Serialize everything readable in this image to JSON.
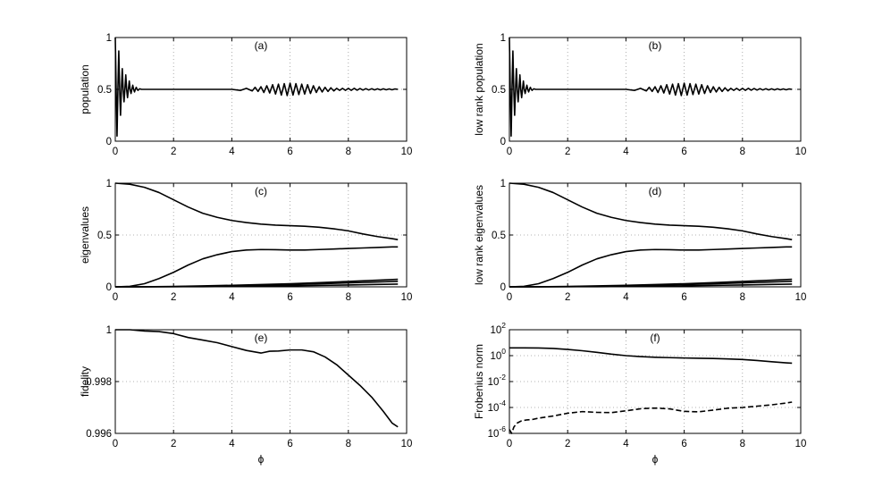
{
  "chart_data": [
    {
      "id": "a",
      "type": "line",
      "panel_label": "(a)",
      "xlabel": "",
      "ylabel": "population",
      "xlim": [
        0,
        10
      ],
      "ylim": [
        0,
        1
      ],
      "xticks": [
        "0",
        "2",
        "4",
        "6",
        "8",
        "10"
      ],
      "yticks": [
        {
          "v": 0,
          "t": "0"
        },
        {
          "v": 0.5,
          "t": "0.5"
        },
        {
          "v": 1,
          "t": "1"
        }
      ],
      "log_y": false,
      "grid": true,
      "series": [
        {
          "style": "solid",
          "x": [
            0,
            0.03,
            0.06,
            0.09,
            0.12,
            0.15,
            0.18,
            0.21,
            0.24,
            0.27,
            0.3,
            0.33,
            0.36,
            0.39,
            0.42,
            0.45,
            0.48,
            0.51,
            0.54,
            0.57,
            0.6,
            0.63,
            0.66,
            0.69,
            0.72,
            0.75,
            0.78,
            0.81,
            0.84,
            0.9,
            1.0,
            1.5,
            2,
            2.5,
            3,
            3.5,
            4,
            4.3,
            4.5,
            4.7,
            4.8,
            4.9,
            5.0,
            5.1,
            5.2,
            5.3,
            5.4,
            5.5,
            5.6,
            5.7,
            5.8,
            5.9,
            6.0,
            6.1,
            6.2,
            6.3,
            6.4,
            6.5,
            6.6,
            6.7,
            6.8,
            6.9,
            7.0,
            7.1,
            7.2,
            7.3,
            7.4,
            7.5,
            7.6,
            7.7,
            7.8,
            7.9,
            8.0,
            8.1,
            8.2,
            8.3,
            8.4,
            8.5,
            8.6,
            8.7,
            8.8,
            8.9,
            9.0,
            9.1,
            9.2,
            9.3,
            9.4,
            9.5,
            9.6,
            9.7
          ],
          "y": [
            1.0,
            0.5,
            0.05,
            0.5,
            0.87,
            0.5,
            0.25,
            0.5,
            0.7,
            0.5,
            0.38,
            0.5,
            0.64,
            0.5,
            0.42,
            0.5,
            0.58,
            0.5,
            0.46,
            0.5,
            0.54,
            0.5,
            0.475,
            0.5,
            0.52,
            0.5,
            0.49,
            0.5,
            0.505,
            0.5,
            0.5,
            0.5,
            0.5,
            0.5,
            0.5,
            0.5,
            0.5,
            0.49,
            0.51,
            0.485,
            0.52,
            0.48,
            0.525,
            0.47,
            0.535,
            0.465,
            0.545,
            0.455,
            0.55,
            0.445,
            0.555,
            0.44,
            0.56,
            0.445,
            0.555,
            0.45,
            0.55,
            0.455,
            0.545,
            0.46,
            0.535,
            0.47,
            0.525,
            0.475,
            0.52,
            0.48,
            0.515,
            0.485,
            0.51,
            0.49,
            0.51,
            0.49,
            0.51,
            0.49,
            0.51,
            0.492,
            0.508,
            0.493,
            0.507,
            0.494,
            0.506,
            0.495,
            0.505,
            0.495,
            0.505,
            0.496,
            0.504,
            0.496,
            0.504,
            0.5
          ]
        }
      ]
    },
    {
      "id": "b",
      "type": "line",
      "panel_label": "(b)",
      "xlabel": "",
      "ylabel": "low rank population",
      "xlim": [
        0,
        10
      ],
      "ylim": [
        0,
        1
      ],
      "xticks": [
        "0",
        "2",
        "4",
        "6",
        "8",
        "10"
      ],
      "yticks": [
        {
          "v": 0,
          "t": "0"
        },
        {
          "v": 0.5,
          "t": "0.5"
        },
        {
          "v": 1,
          "t": "1"
        }
      ],
      "log_y": false,
      "grid": true,
      "series": [
        {
          "style": "solid",
          "x": [
            0,
            0.03,
            0.06,
            0.09,
            0.12,
            0.15,
            0.18,
            0.21,
            0.24,
            0.27,
            0.3,
            0.33,
            0.36,
            0.39,
            0.42,
            0.45,
            0.48,
            0.51,
            0.54,
            0.57,
            0.6,
            0.63,
            0.66,
            0.69,
            0.72,
            0.75,
            0.78,
            0.81,
            0.84,
            0.9,
            1.0,
            1.5,
            2,
            2.5,
            3,
            3.5,
            4,
            4.3,
            4.5,
            4.7,
            4.8,
            4.9,
            5.0,
            5.1,
            5.2,
            5.3,
            5.4,
            5.5,
            5.6,
            5.7,
            5.8,
            5.9,
            6.0,
            6.1,
            6.2,
            6.3,
            6.4,
            6.5,
            6.6,
            6.7,
            6.8,
            6.9,
            7.0,
            7.1,
            7.2,
            7.3,
            7.4,
            7.5,
            7.6,
            7.7,
            7.8,
            7.9,
            8.0,
            8.1,
            8.2,
            8.3,
            8.4,
            8.5,
            8.6,
            8.7,
            8.8,
            8.9,
            9.0,
            9.1,
            9.2,
            9.3,
            9.4,
            9.5,
            9.6,
            9.7
          ],
          "y": [
            1.0,
            0.5,
            0.05,
            0.5,
            0.87,
            0.5,
            0.25,
            0.5,
            0.7,
            0.5,
            0.38,
            0.5,
            0.64,
            0.5,
            0.42,
            0.5,
            0.58,
            0.5,
            0.46,
            0.5,
            0.54,
            0.5,
            0.475,
            0.5,
            0.52,
            0.5,
            0.49,
            0.5,
            0.505,
            0.5,
            0.5,
            0.5,
            0.5,
            0.5,
            0.5,
            0.5,
            0.5,
            0.49,
            0.51,
            0.485,
            0.52,
            0.48,
            0.525,
            0.47,
            0.535,
            0.465,
            0.545,
            0.455,
            0.55,
            0.445,
            0.555,
            0.44,
            0.56,
            0.445,
            0.555,
            0.45,
            0.55,
            0.455,
            0.545,
            0.46,
            0.535,
            0.47,
            0.525,
            0.475,
            0.52,
            0.48,
            0.515,
            0.485,
            0.51,
            0.49,
            0.51,
            0.49,
            0.51,
            0.49,
            0.51,
            0.492,
            0.508,
            0.493,
            0.507,
            0.494,
            0.506,
            0.495,
            0.505,
            0.495,
            0.505,
            0.496,
            0.504,
            0.496,
            0.504,
            0.5
          ]
        }
      ]
    },
    {
      "id": "c",
      "type": "line",
      "panel_label": "(c)",
      "xlabel": "",
      "ylabel": "eigenvalues",
      "xlim": [
        0,
        10
      ],
      "ylim": [
        0,
        1
      ],
      "xticks": [
        "0",
        "2",
        "4",
        "6",
        "8",
        "10"
      ],
      "yticks": [
        {
          "v": 0,
          "t": "0"
        },
        {
          "v": 0.5,
          "t": "0.5"
        },
        {
          "v": 1,
          "t": "1"
        }
      ],
      "log_y": false,
      "grid": true,
      "series": [
        {
          "style": "solid",
          "x": [
            0,
            0.5,
            1,
            1.5,
            2,
            2.5,
            3,
            3.5,
            4,
            4.5,
            5,
            5.5,
            6,
            6.5,
            7,
            7.5,
            8,
            8.5,
            9,
            9.5,
            9.7
          ],
          "y": [
            1.0,
            0.99,
            0.96,
            0.91,
            0.84,
            0.77,
            0.71,
            0.67,
            0.64,
            0.62,
            0.605,
            0.595,
            0.59,
            0.585,
            0.575,
            0.56,
            0.54,
            0.51,
            0.485,
            0.465,
            0.455
          ]
        },
        {
          "style": "solid",
          "x": [
            0,
            0.5,
            1,
            1.5,
            2,
            2.5,
            3,
            3.5,
            4,
            4.5,
            5,
            5.5,
            6,
            6.5,
            7,
            7.5,
            8,
            8.5,
            9,
            9.5,
            9.7
          ],
          "y": [
            0,
            0.005,
            0.03,
            0.08,
            0.14,
            0.21,
            0.27,
            0.31,
            0.34,
            0.355,
            0.36,
            0.358,
            0.355,
            0.355,
            0.36,
            0.365,
            0.37,
            0.375,
            0.38,
            0.385,
            0.385
          ]
        },
        {
          "style": "solid",
          "x": [
            0,
            1,
            2,
            3,
            4,
            5,
            6,
            7,
            8,
            9,
            9.7
          ],
          "y": [
            0,
            0.001,
            0.004,
            0.009,
            0.015,
            0.022,
            0.03,
            0.04,
            0.052,
            0.064,
            0.073
          ]
        },
        {
          "style": "solid",
          "x": [
            0,
            1,
            2,
            3,
            4,
            5,
            6,
            7,
            8,
            9,
            9.7
          ],
          "y": [
            0,
            0.0,
            0.002,
            0.005,
            0.01,
            0.016,
            0.022,
            0.03,
            0.038,
            0.047,
            0.053
          ]
        },
        {
          "style": "solid",
          "x": [
            0,
            1,
            2,
            3,
            4,
            5,
            6,
            7,
            8,
            9,
            9.7
          ],
          "y": [
            0,
            0,
            0.001,
            0.002,
            0.004,
            0.007,
            0.01,
            0.014,
            0.018,
            0.023,
            0.026
          ]
        }
      ]
    },
    {
      "id": "d",
      "type": "line",
      "panel_label": "(d)",
      "xlabel": "",
      "ylabel": "low rank eigenvalues",
      "xlim": [
        0,
        10
      ],
      "ylim": [
        0,
        1
      ],
      "xticks": [
        "0",
        "2",
        "4",
        "6",
        "8",
        "10"
      ],
      "yticks": [
        {
          "v": 0,
          "t": "0"
        },
        {
          "v": 0.5,
          "t": "0.5"
        },
        {
          "v": 1,
          "t": "1"
        }
      ],
      "log_y": false,
      "grid": true,
      "series": [
        {
          "style": "solid",
          "x": [
            0,
            0.5,
            1,
            1.5,
            2,
            2.5,
            3,
            3.5,
            4,
            4.5,
            5,
            5.5,
            6,
            6.5,
            7,
            7.5,
            8,
            8.5,
            9,
            9.5,
            9.7
          ],
          "y": [
            1.0,
            0.99,
            0.96,
            0.91,
            0.84,
            0.77,
            0.71,
            0.67,
            0.64,
            0.62,
            0.605,
            0.595,
            0.59,
            0.585,
            0.575,
            0.56,
            0.54,
            0.51,
            0.485,
            0.465,
            0.455
          ]
        },
        {
          "style": "solid",
          "x": [
            0,
            0.5,
            1,
            1.5,
            2,
            2.5,
            3,
            3.5,
            4,
            4.5,
            5,
            5.5,
            6,
            6.5,
            7,
            7.5,
            8,
            8.5,
            9,
            9.5,
            9.7
          ],
          "y": [
            0,
            0.005,
            0.03,
            0.08,
            0.14,
            0.21,
            0.27,
            0.31,
            0.34,
            0.355,
            0.36,
            0.358,
            0.355,
            0.355,
            0.36,
            0.365,
            0.37,
            0.375,
            0.38,
            0.385,
            0.385
          ]
        },
        {
          "style": "solid",
          "x": [
            0,
            1,
            2,
            3,
            4,
            5,
            6,
            7,
            8,
            9,
            9.7
          ],
          "y": [
            0,
            0.001,
            0.004,
            0.009,
            0.015,
            0.022,
            0.03,
            0.04,
            0.052,
            0.064,
            0.073
          ]
        },
        {
          "style": "solid",
          "x": [
            0,
            1,
            2,
            3,
            4,
            5,
            6,
            7,
            8,
            9,
            9.7
          ],
          "y": [
            0,
            0.0,
            0.002,
            0.005,
            0.01,
            0.016,
            0.022,
            0.03,
            0.038,
            0.047,
            0.053
          ]
        },
        {
          "style": "solid",
          "x": [
            0,
            1,
            2,
            3,
            4,
            5,
            6,
            7,
            8,
            9,
            9.7
          ],
          "y": [
            0,
            0,
            0.001,
            0.002,
            0.004,
            0.007,
            0.01,
            0.014,
            0.018,
            0.023,
            0.026
          ]
        }
      ]
    },
    {
      "id": "e",
      "type": "line",
      "panel_label": "(e)",
      "xlabel": "ϕ",
      "ylabel": "fidelity",
      "xlim": [
        0,
        10
      ],
      "ylim": [
        0.996,
        1.0
      ],
      "xticks": [
        "0",
        "2",
        "4",
        "6",
        "8",
        "10"
      ],
      "yticks": [
        {
          "v": 0.996,
          "t": "0.996"
        },
        {
          "v": 0.998,
          "t": "0.998"
        },
        {
          "v": 1.0,
          "t": "1"
        }
      ],
      "log_y": false,
      "grid": true,
      "series": [
        {
          "style": "solid",
          "x": [
            0,
            0.5,
            1,
            1.5,
            2,
            2.5,
            3,
            3.5,
            4,
            4.5,
            5,
            5.3,
            5.6,
            6,
            6.4,
            6.8,
            7.2,
            7.6,
            8,
            8.4,
            8.8,
            9.2,
            9.5,
            9.7
          ],
          "y": [
            1.0,
            1.0,
            0.99995,
            0.99993,
            0.99985,
            0.9997,
            0.9996,
            0.9995,
            0.99935,
            0.9992,
            0.9991,
            0.99917,
            0.99918,
            0.99922,
            0.99922,
            0.99915,
            0.99895,
            0.99865,
            0.99825,
            0.99785,
            0.9974,
            0.99685,
            0.9964,
            0.99625
          ]
        }
      ]
    },
    {
      "id": "f",
      "type": "line",
      "panel_label": "(f)",
      "xlabel": "ϕ",
      "ylabel": "Frobenius norm",
      "xlim": [
        0,
        10
      ],
      "ylim": [
        1e-06,
        100
      ],
      "xticks": [
        "0",
        "2",
        "4",
        "6",
        "8",
        "10"
      ],
      "yticks": [
        {
          "v": 1e-06,
          "t": "10",
          "e": "-6"
        },
        {
          "v": 0.0001,
          "t": "10",
          "e": "-4"
        },
        {
          "v": 0.01,
          "t": "10",
          "e": "-2"
        },
        {
          "v": 1,
          "t": "10",
          "e": "0"
        },
        {
          "v": 100,
          "t": "10",
          "e": "2"
        }
      ],
      "log_y": true,
      "grid": true,
      "series": [
        {
          "style": "solid",
          "x": [
            0,
            0.5,
            1,
            1.5,
            2,
            2.5,
            3,
            3.5,
            4,
            4.5,
            5,
            5.5,
            6,
            6.5,
            7,
            7.5,
            8,
            8.5,
            9,
            9.5,
            9.7
          ],
          "y": [
            4,
            4,
            3.9,
            3.6,
            3.0,
            2.4,
            1.8,
            1.3,
            1.0,
            0.85,
            0.75,
            0.7,
            0.66,
            0.63,
            0.6,
            0.56,
            0.5,
            0.42,
            0.34,
            0.28,
            0.26
          ]
        },
        {
          "style": "dashed",
          "x": [
            0,
            0.08,
            0.15,
            0.25,
            0.4,
            0.6,
            0.8,
            1,
            1.5,
            2,
            2.5,
            3,
            3.5,
            4,
            4.5,
            5,
            5.5,
            6,
            6.5,
            7,
            7.5,
            8,
            8.5,
            9,
            9.5,
            9.7
          ],
          "y": [
            2e-06,
            1e-06,
            3e-06,
            6e-06,
            9e-06,
            1.1e-05,
            1.2e-05,
            1.5e-05,
            2.2e-05,
            3.6e-05,
            4.8e-05,
            4.2e-05,
            4e-05,
            5.5e-05,
            8e-05,
            9e-05,
            7.8e-05,
            5e-05,
            4.6e-05,
            6.3e-05,
            8.8e-05,
            0.0001,
            0.000125,
            0.00016,
            0.00022,
            0.00026
          ]
        }
      ]
    }
  ]
}
